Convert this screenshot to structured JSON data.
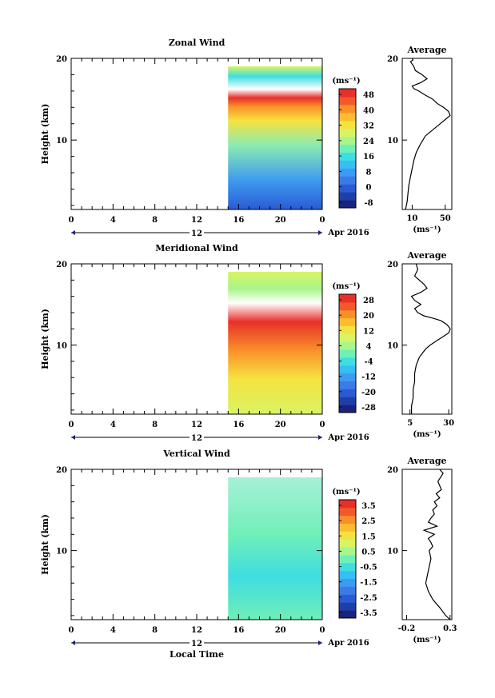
{
  "chart_data": [
    {
      "type": "heatmap",
      "title": "Zonal Wind",
      "ylabel": "Height (km)",
      "xticks": [
        "0",
        "4",
        "8",
        "12",
        "16",
        "20",
        "0"
      ],
      "ylim": [
        1.5,
        20
      ],
      "yticks": [
        "10",
        "20"
      ],
      "date_label": "12",
      "date_suffix": "Apr 2016",
      "data_start_hour": 15,
      "colorbar": {
        "unit": "(ms⁻¹)",
        "levels": [
          "48",
          "40",
          "32",
          "24",
          "16",
          "8",
          "0",
          "-8"
        ],
        "colors": [
          "#1a237e",
          "#1f3fa8",
          "#2a5bd4",
          "#3a7be6",
          "#3d9af0",
          "#35bff2",
          "#3fdde0",
          "#70efb8",
          "#a8f58a",
          "#d8f464",
          "#f6e23f",
          "#fbbd2e",
          "#f98f2a",
          "#f2582a",
          "#e8302b"
        ]
      },
      "profile": {
        "title": "Average",
        "xlabel": "(ms⁻¹)",
        "xticks": [
          "10",
          "50"
        ],
        "xlim": [
          -2,
          58
        ],
        "x": [
          2,
          4,
          5,
          6,
          8,
          10,
          12,
          15,
          20,
          26,
          32,
          38,
          44,
          50,
          56,
          54,
          48,
          40,
          35,
          26,
          18,
          12,
          10,
          20,
          28,
          22,
          14,
          12,
          10,
          8,
          11,
          10
        ],
        "y": [
          1.5,
          2.5,
          3.5,
          4.5,
          5.5,
          6.5,
          7.5,
          8.5,
          9.5,
          10.5,
          11.0,
          11.5,
          12.0,
          12.5,
          13.0,
          13.5,
          14.0,
          14.5,
          15.0,
          15.5,
          16.0,
          16.3,
          16.6,
          17.0,
          17.5,
          18.0,
          18.5,
          19.0,
          19.3,
          19.6,
          19.8,
          20
        ]
      }
    },
    {
      "type": "heatmap",
      "title": "Meridional Wind",
      "ylabel": "Height (km)",
      "xticks": [
        "0",
        "4",
        "8",
        "12",
        "16",
        "20",
        "0"
      ],
      "ylim": [
        1.5,
        20
      ],
      "yticks": [
        "10",
        "20"
      ],
      "date_label": "12",
      "date_suffix": "Apr 2016",
      "data_start_hour": 15,
      "colorbar": {
        "unit": "(ms⁻¹)",
        "levels": [
          "28",
          "20",
          "12",
          "4",
          "-4",
          "-12",
          "-20",
          "-28"
        ],
        "colors": [
          "#1a237e",
          "#1f3fa8",
          "#2a5bd4",
          "#3a7be6",
          "#3d9af0",
          "#35bff2",
          "#3fdde0",
          "#70efb8",
          "#a8f58a",
          "#d8f464",
          "#f6e23f",
          "#fbbd2e",
          "#f98f2a",
          "#f2582a",
          "#e8302b"
        ]
      },
      "profile": {
        "title": "Average",
        "xlabel": "(ms⁻¹)",
        "xticks": [
          "5",
          "30"
        ],
        "xlim": [
          0,
          32
        ],
        "x": [
          6,
          6,
          7,
          7,
          8,
          8,
          9,
          10,
          11,
          13,
          15,
          18,
          22,
          26,
          30,
          31,
          29,
          25,
          20,
          14,
          10,
          8,
          12,
          8,
          6,
          12,
          16,
          14,
          8,
          10,
          9
        ],
        "y": [
          1.5,
          2.5,
          3.5,
          4.5,
          5.5,
          6.5,
          7.5,
          8.0,
          8.5,
          9.0,
          9.5,
          10.0,
          10.5,
          11.0,
          11.5,
          12.0,
          12.5,
          13.0,
          13.3,
          13.6,
          14.0,
          14.5,
          15.0,
          15.5,
          16.0,
          16.5,
          17.0,
          17.5,
          18.5,
          19.3,
          20
        ]
      }
    },
    {
      "type": "heatmap",
      "title": "Vertical Wind",
      "ylabel": "Height (km)",
      "xlabel": "Local Time",
      "xticks": [
        "0",
        "4",
        "8",
        "12",
        "16",
        "20",
        "0"
      ],
      "ylim": [
        1.5,
        20
      ],
      "yticks": [
        "10",
        "20"
      ],
      "date_label": "12",
      "date_suffix": "Apr 2016",
      "data_start_hour": 15,
      "colorbar": {
        "unit": "(ms⁻¹)",
        "levels": [
          "3.5",
          "2.5",
          "1.5",
          "0.5",
          "-0.5",
          "-1.5",
          "-2.5",
          "-3.5"
        ],
        "colors": [
          "#1a237e",
          "#1f3fa8",
          "#2a5bd4",
          "#3a7be6",
          "#3d9af0",
          "#35bff2",
          "#3fdde0",
          "#70efb8",
          "#a8f58a",
          "#d8f464",
          "#f6e23f",
          "#fbbd2e",
          "#f98f2a",
          "#f2582a",
          "#e8302b"
        ]
      },
      "profile": {
        "title": "Average",
        "xlabel": "(ms⁻¹)",
        "xticks": [
          "-0.2",
          "0.3"
        ],
        "xlim": [
          -0.25,
          0.32
        ],
        "x": [
          0.3,
          0.25,
          0.18,
          0.1,
          0.05,
          0.02,
          0.04,
          0.06,
          0.08,
          0.06,
          0.1,
          0.08,
          0.05,
          0.12,
          0.0,
          0.15,
          0.05,
          0.08,
          0.12,
          0.1,
          0.15,
          0.12,
          0.18,
          0.14,
          0.2,
          0.16,
          0.22,
          0.18
        ],
        "y": [
          1.5,
          2.0,
          3.0,
          4.0,
          5.0,
          6.0,
          7.0,
          8.0,
          9.0,
          10.0,
          10.5,
          11.0,
          11.5,
          12.0,
          12.5,
          13.0,
          13.5,
          14.0,
          14.5,
          15.0,
          15.5,
          16.0,
          16.5,
          17.0,
          17.5,
          18.5,
          19.5,
          20
        ]
      }
    }
  ]
}
